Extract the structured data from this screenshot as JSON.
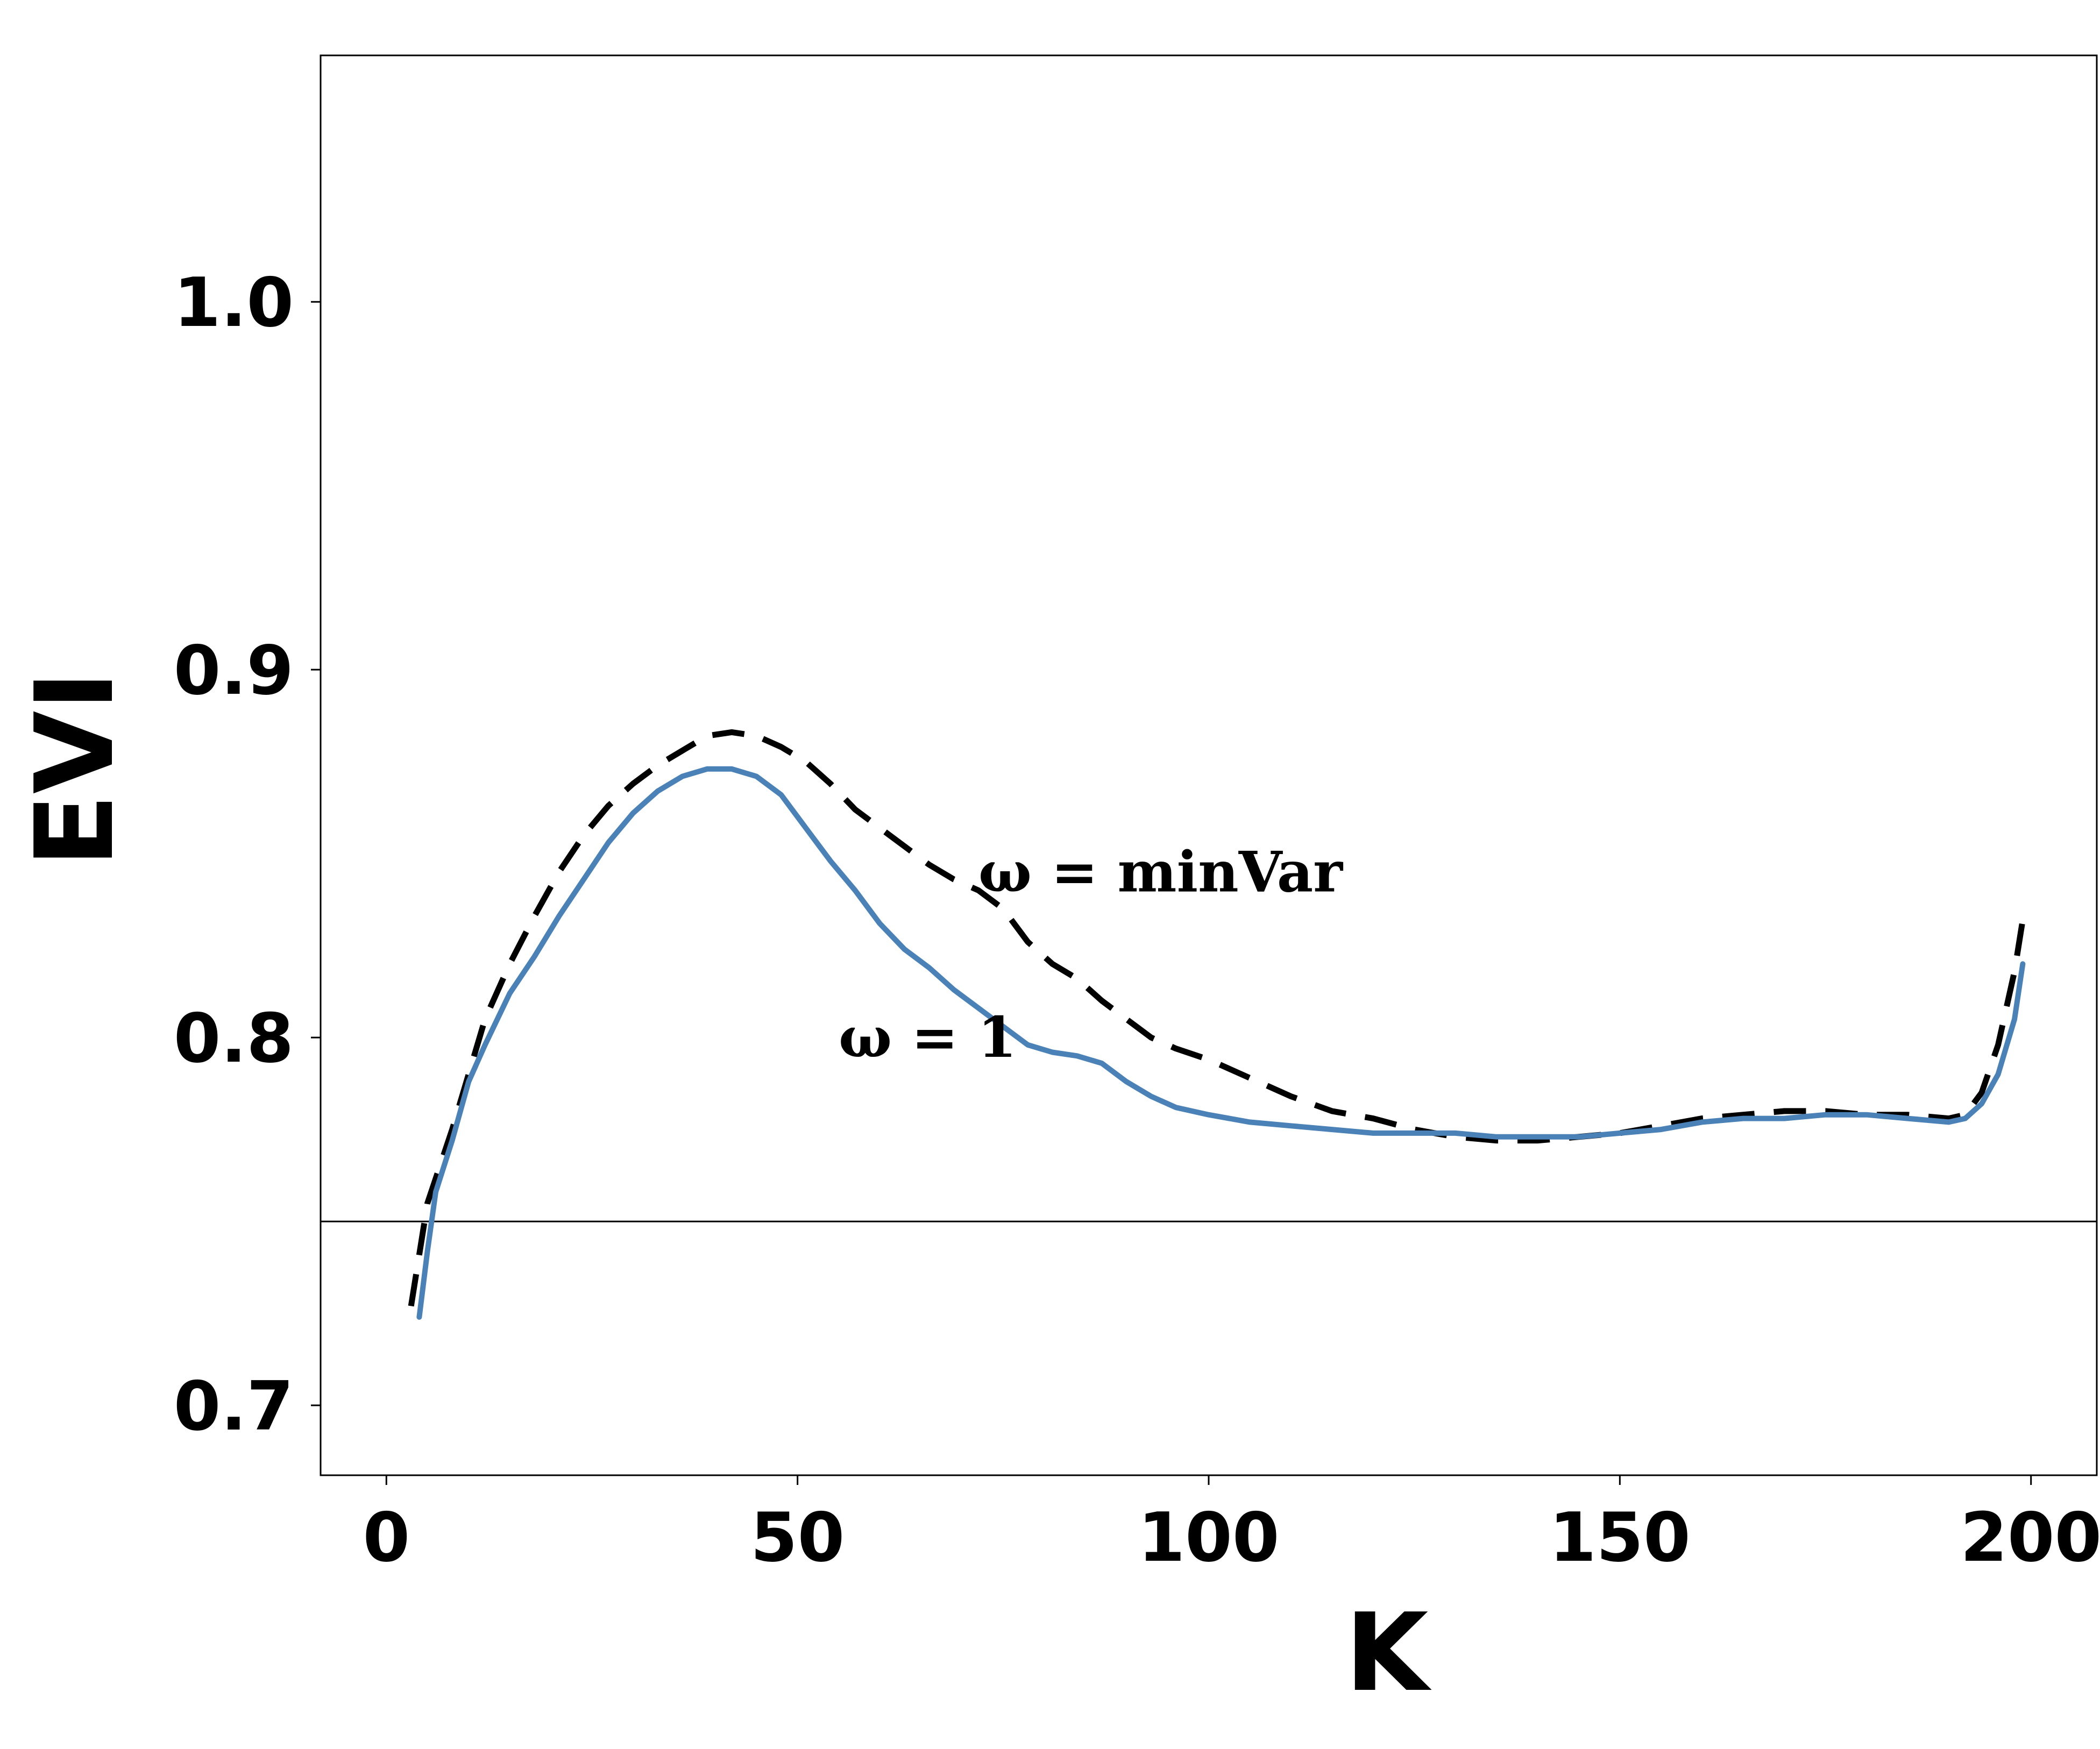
{
  "chart_data": {
    "type": "line",
    "xlabel": "K",
    "ylabel": "EVI",
    "xlim": [
      -8,
      208
    ],
    "ylim": [
      0.681,
      1.067
    ],
    "xticks": [
      0,
      50,
      100,
      150,
      200
    ],
    "yticks": [
      0.7,
      0.8,
      0.9,
      1.0
    ],
    "xtick_labels": [
      "0",
      "50",
      "100",
      "150",
      "200"
    ],
    "ytick_labels": [
      "0.7",
      "0.8",
      "0.9",
      "1.0"
    ],
    "grid": false,
    "reference_line": {
      "y": 0.75
    },
    "series": [
      {
        "name": "ω = minVar",
        "style": "dashed",
        "color": "#000000",
        "x": [
          3,
          5,
          8,
          10,
          12,
          15,
          18,
          21,
          24,
          27,
          30,
          33,
          36,
          39,
          42,
          45,
          48,
          51,
          54,
          57,
          60,
          63,
          66,
          69,
          72,
          75,
          78,
          81,
          84,
          87,
          90,
          93,
          96,
          100,
          105,
          110,
          115,
          120,
          125,
          130,
          135,
          140,
          145,
          150,
          155,
          160,
          165,
          170,
          175,
          180,
          185,
          190,
          192,
          194,
          196,
          198,
          199
        ],
        "y": [
          0.727,
          0.755,
          0.775,
          0.79,
          0.805,
          0.82,
          0.833,
          0.845,
          0.855,
          0.863,
          0.869,
          0.874,
          0.878,
          0.882,
          0.883,
          0.882,
          0.879,
          0.875,
          0.869,
          0.862,
          0.857,
          0.852,
          0.847,
          0.843,
          0.84,
          0.835,
          0.826,
          0.82,
          0.816,
          0.81,
          0.805,
          0.8,
          0.797,
          0.794,
          0.789,
          0.784,
          0.78,
          0.778,
          0.775,
          0.773,
          0.772,
          0.772,
          0.773,
          0.774,
          0.776,
          0.778,
          0.779,
          0.78,
          0.78,
          0.779,
          0.779,
          0.778,
          0.779,
          0.785,
          0.798,
          0.818,
          0.832
        ]
      },
      {
        "name": "ω = 1",
        "style": "solid",
        "color": "#4a82b8",
        "x": [
          4,
          5,
          6,
          8,
          10,
          12,
          15,
          18,
          21,
          24,
          27,
          30,
          33,
          36,
          39,
          42,
          45,
          48,
          51,
          54,
          57,
          60,
          63,
          66,
          69,
          72,
          75,
          78,
          81,
          84,
          87,
          90,
          93,
          96,
          100,
          105,
          110,
          115,
          120,
          125,
          130,
          135,
          140,
          145,
          150,
          155,
          160,
          165,
          170,
          175,
          180,
          185,
          190,
          192,
          194,
          196,
          198,
          199
        ],
        "y": [
          0.724,
          0.742,
          0.758,
          0.772,
          0.788,
          0.798,
          0.812,
          0.822,
          0.833,
          0.843,
          0.853,
          0.861,
          0.867,
          0.871,
          0.873,
          0.873,
          0.871,
          0.866,
          0.857,
          0.848,
          0.84,
          0.831,
          0.824,
          0.819,
          0.813,
          0.808,
          0.803,
          0.798,
          0.796,
          0.795,
          0.793,
          0.788,
          0.784,
          0.781,
          0.779,
          0.777,
          0.776,
          0.775,
          0.774,
          0.774,
          0.774,
          0.773,
          0.773,
          0.773,
          0.774,
          0.775,
          0.777,
          0.778,
          0.778,
          0.779,
          0.779,
          0.778,
          0.777,
          0.778,
          0.782,
          0.79,
          0.805,
          0.82
        ]
      }
    ],
    "annotations": [
      {
        "text": "ω = minVar",
        "x": 72,
        "y": 0.845,
        "series": 0
      },
      {
        "text": "ω = 1",
        "x": 55,
        "y": 0.8,
        "series": 1
      }
    ]
  }
}
